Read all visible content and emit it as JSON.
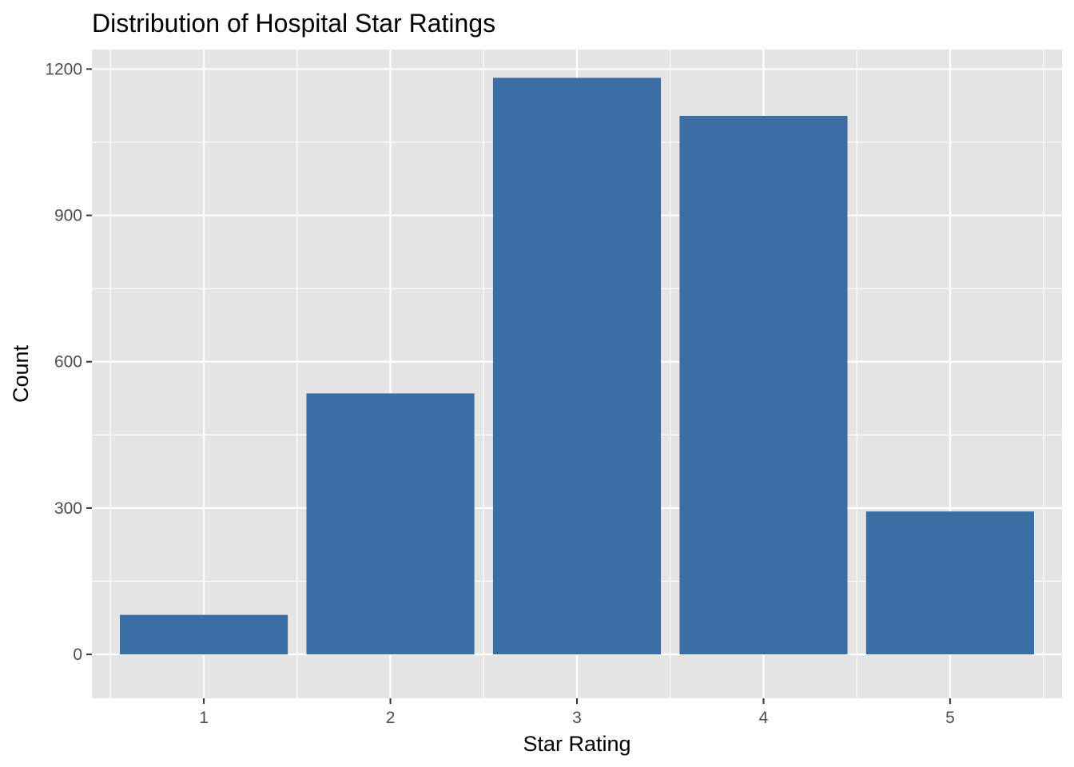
{
  "chart_data": {
    "type": "bar",
    "title": "Distribution of Hospital Star Ratings",
    "xlabel": "Star Rating",
    "ylabel": "Count",
    "categories": [
      "1",
      "2",
      "3",
      "4",
      "5"
    ],
    "values": [
      81,
      535,
      1182,
      1104,
      293
    ],
    "ylim": [
      -90,
      1240
    ],
    "yticks": [
      0,
      300,
      600,
      900,
      1200
    ],
    "y_minor_ticks": [
      150,
      450,
      750,
      1050
    ],
    "grid": true,
    "bar_color": "#3A6EA5",
    "panel_background": "#E5E5E5",
    "grid_color": "#FFFFFF"
  }
}
